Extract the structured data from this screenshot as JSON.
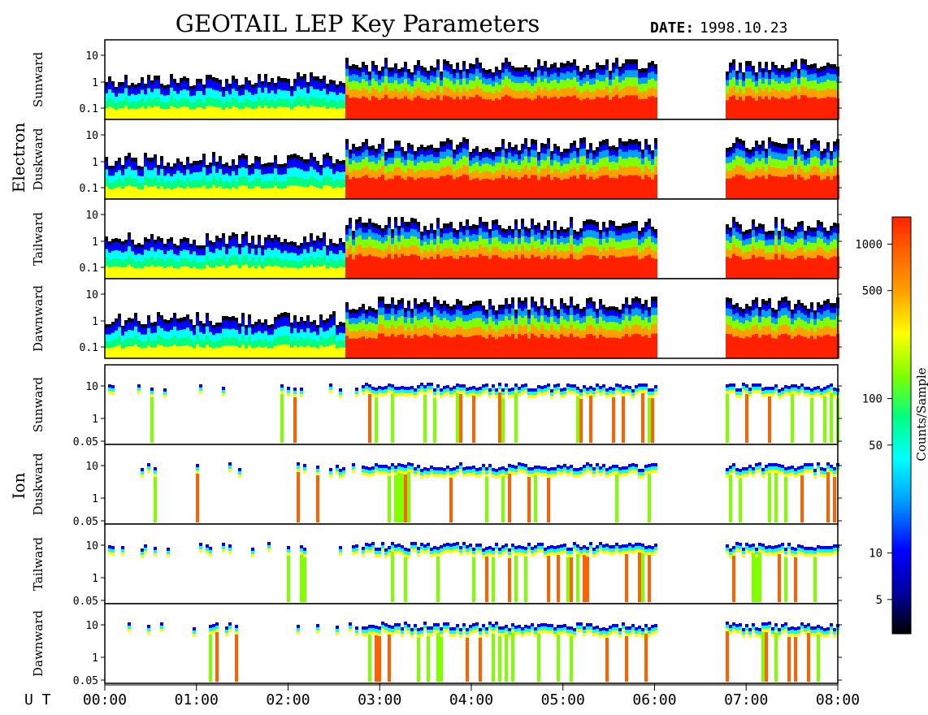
{
  "header": {
    "title": "GEOTAIL LEP Key Parameters",
    "date_label": "DATE:",
    "date_value": "1998.10.23"
  },
  "groups": [
    {
      "label": "Electron"
    },
    {
      "label": "Ion"
    }
  ],
  "time_axis": {
    "label": "U T",
    "ticks": [
      "00:00",
      "01:00",
      "02:00",
      "03:00",
      "04:00",
      "05:00",
      "06:00",
      "07:00",
      "08:00"
    ]
  },
  "colorbar": {
    "label": "Counts/Sample",
    "tick_labels": [
      "1000",
      "500",
      "100",
      "50",
      "10",
      "5"
    ],
    "tick_values": [
      1000,
      500,
      100,
      50,
      10,
      5
    ],
    "range": [
      3,
      1500
    ],
    "scale": "log",
    "colors": [
      "#000000",
      "#0000a0",
      "#0000ff",
      "#00a0ff",
      "#00ffff",
      "#00ff80",
      "#80ff00",
      "#ffff00",
      "#ffa000",
      "#ff6000",
      "#ff2000"
    ]
  },
  "chart_data": {
    "type": "heatmap",
    "title": "GEOTAIL LEP Key Parameters",
    "x_range_hours": [
      0,
      8
    ],
    "y_scale": "log",
    "data_gap_hours": [
      6.0,
      6.75
    ],
    "panels": [
      {
        "group": "Electron",
        "name": "Sunward",
        "y_ticks": [
          "10",
          "1",
          "0.1"
        ],
        "y_values": [
          10,
          1,
          0.1
        ]
      },
      {
        "group": "Electron",
        "name": "Duskward",
        "y_ticks": [
          "10",
          "1",
          "0.1"
        ],
        "y_values": [
          10,
          1,
          0.1
        ]
      },
      {
        "group": "Electron",
        "name": "Tailward",
        "y_ticks": [
          "10",
          "1",
          "0.1"
        ],
        "y_values": [
          10,
          1,
          0.1
        ]
      },
      {
        "group": "Electron",
        "name": "Dawnward",
        "y_ticks": [
          "10",
          "1",
          "0.1"
        ],
        "y_values": [
          10,
          1,
          0.1
        ]
      },
      {
        "group": "Ion",
        "name": "Sunward",
        "y_ticks": [
          "10",
          "1",
          "0.05"
        ],
        "y_values": [
          10,
          1,
          0.05
        ]
      },
      {
        "group": "Ion",
        "name": "Duskward",
        "y_ticks": [
          "10",
          "1",
          "0.05"
        ],
        "y_values": [
          10,
          1,
          0.05
        ]
      },
      {
        "group": "Ion",
        "name": "Tailward",
        "y_ticks": [
          "10",
          "1",
          "0.05"
        ],
        "y_values": [
          10,
          1,
          0.05
        ]
      },
      {
        "group": "Ion",
        "name": "Dawnward",
        "y_ticks": [
          "10",
          "1",
          "0.05"
        ],
        "y_values": [
          10,
          1,
          0.05
        ]
      }
    ]
  }
}
